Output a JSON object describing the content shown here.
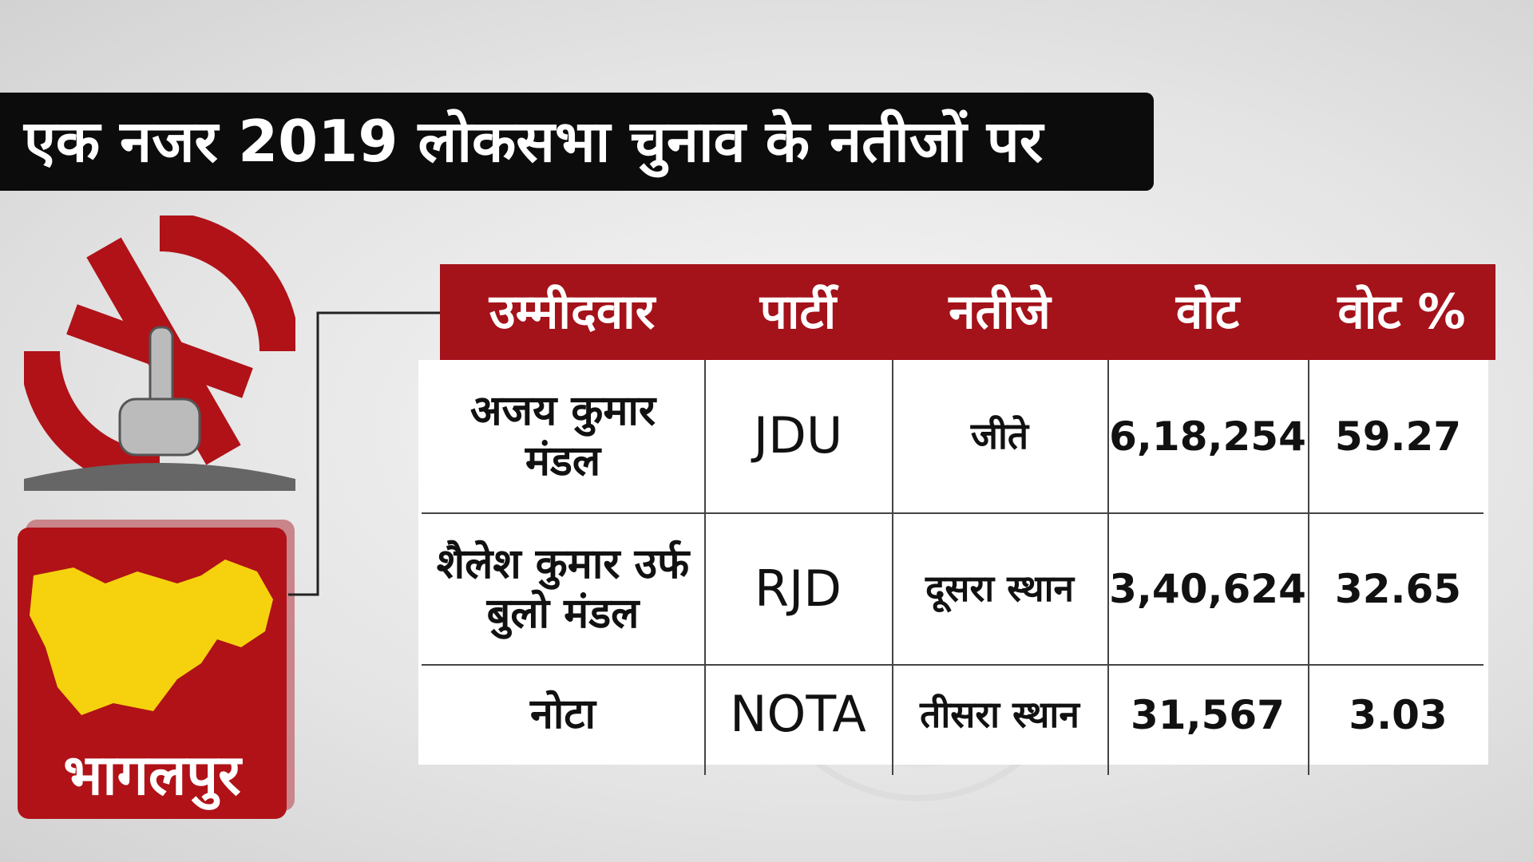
{
  "title": "एक नजर 2019 लोकसभा चुनाव के नतीजों पर",
  "district": "भागलपुर",
  "table": {
    "header": [
      "उम्मीदवार",
      "पार्टी",
      "नतीजे",
      "वोट",
      "वोट %"
    ],
    "rows": [
      [
        "अजय कुमार मंडल",
        "JDU",
        "जीते",
        "6,18,254",
        "59.27"
      ],
      [
        "शैलेश कुमार उर्फ बुलो मंडल",
        "RJD",
        "दूसरा स्थान",
        "3,40,624",
        "32.65"
      ],
      [
        "नोटा",
        "NOTA",
        "तीसरा स्थान",
        "31,567",
        "3.03"
      ]
    ]
  }
}
